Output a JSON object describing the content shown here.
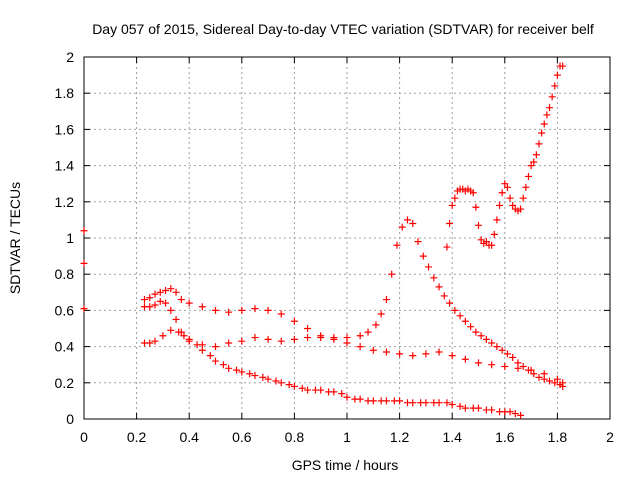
{
  "chart_data": {
    "type": "scatter",
    "title": "Day 057 of 2015, Sidereal Day-to-day VTEC variation (SDTVAR) for receiver belf",
    "xlabel": "GPS time / hours",
    "ylabel": "SDTVAR / TECUs",
    "xlim": [
      0,
      2
    ],
    "ylim": [
      0,
      2
    ],
    "xticks": [
      "0",
      "0.2",
      "0.4",
      "0.6",
      "0.8",
      "1",
      "1.2",
      "1.4",
      "1.6",
      "1.8",
      "2"
    ],
    "yticks": [
      "0",
      "0.2",
      "0.4",
      "0.6",
      "0.8",
      "1",
      "1.2",
      "1.4",
      "1.6",
      "1.8",
      "2"
    ],
    "grid": true,
    "marker": "+",
    "marker_color": "#ff0000",
    "series": [
      {
        "x": [
          0.0,
          0.0,
          0.0
        ],
        "y": [
          1.04,
          0.86,
          0.61
        ]
      },
      {
        "x": [
          0.23,
          0.25,
          0.27,
          0.29,
          0.31,
          0.33,
          0.35,
          0.37,
          0.4,
          0.45,
          0.5,
          0.55,
          0.6,
          0.65,
          0.7,
          0.75,
          0.8,
          0.85,
          0.9,
          0.95,
          1.0,
          1.05,
          1.08,
          1.11,
          1.13,
          1.15,
          1.17,
          1.19,
          1.21,
          1.23,
          1.25,
          1.27,
          1.29,
          1.31,
          1.33,
          1.35,
          1.37,
          1.39,
          1.41,
          1.43,
          1.45,
          1.47,
          1.49,
          1.51,
          1.53,
          1.55,
          1.57,
          1.59,
          1.61,
          1.63,
          1.65,
          1.67,
          1.69,
          1.71,
          1.73,
          1.75,
          1.77,
          1.79,
          1.81,
          1.82
        ],
        "y": [
          0.66,
          0.67,
          0.69,
          0.7,
          0.71,
          0.72,
          0.7,
          0.66,
          0.64,
          0.62,
          0.6,
          0.59,
          0.6,
          0.61,
          0.6,
          0.58,
          0.54,
          0.5,
          0.46,
          0.45,
          0.45,
          0.46,
          0.48,
          0.52,
          0.58,
          0.66,
          0.8,
          0.96,
          1.06,
          1.1,
          1.08,
          0.98,
          0.9,
          0.84,
          0.78,
          0.73,
          0.68,
          0.64,
          0.6,
          0.57,
          0.54,
          0.51,
          0.48,
          0.46,
          0.44,
          0.42,
          0.4,
          0.38,
          0.36,
          0.34,
          0.31,
          0.29,
          0.27,
          0.25,
          0.23,
          0.22,
          0.21,
          0.2,
          0.19,
          0.18
        ]
      },
      {
        "x": [
          0.23,
          0.25,
          0.27,
          0.29,
          0.31,
          0.33,
          0.35,
          0.37,
          0.4,
          0.45,
          0.5,
          0.55,
          0.6,
          0.65,
          0.7,
          0.75,
          0.8,
          0.85,
          0.9,
          0.95,
          1.0,
          1.05,
          1.1,
          1.15,
          1.2,
          1.25,
          1.3,
          1.35,
          1.4,
          1.45,
          1.5,
          1.55,
          1.6,
          1.65,
          1.7,
          1.75,
          1.8,
          1.82
        ],
        "y": [
          0.62,
          0.62,
          0.63,
          0.65,
          0.64,
          0.6,
          0.55,
          0.48,
          0.44,
          0.41,
          0.4,
          0.42,
          0.43,
          0.45,
          0.44,
          0.43,
          0.44,
          0.45,
          0.45,
          0.44,
          0.42,
          0.4,
          0.38,
          0.37,
          0.36,
          0.35,
          0.36,
          0.37,
          0.35,
          0.33,
          0.31,
          0.3,
          0.29,
          0.28,
          0.27,
          0.25,
          0.22,
          0.2
        ]
      },
      {
        "x": [
          0.23,
          0.25,
          0.27,
          0.3,
          0.33,
          0.36,
          0.38,
          0.4,
          0.43,
          0.45,
          0.48,
          0.5,
          0.53,
          0.55,
          0.58,
          0.6,
          0.63,
          0.65,
          0.68,
          0.7,
          0.73,
          0.75,
          0.78,
          0.8,
          0.83,
          0.85,
          0.88,
          0.9,
          0.93,
          0.95,
          0.98,
          1.0,
          1.03,
          1.05,
          1.08,
          1.1,
          1.13,
          1.15,
          1.18,
          1.2,
          1.23,
          1.25,
          1.28,
          1.3,
          1.33,
          1.35,
          1.38,
          1.4,
          1.43,
          1.45,
          1.48,
          1.5,
          1.53,
          1.55,
          1.58,
          1.6,
          1.62,
          1.64,
          1.66
        ],
        "y": [
          0.42,
          0.42,
          0.43,
          0.46,
          0.49,
          0.48,
          0.46,
          0.43,
          0.41,
          0.38,
          0.35,
          0.32,
          0.3,
          0.28,
          0.27,
          0.26,
          0.25,
          0.24,
          0.23,
          0.22,
          0.21,
          0.2,
          0.19,
          0.18,
          0.17,
          0.16,
          0.16,
          0.16,
          0.15,
          0.15,
          0.14,
          0.12,
          0.11,
          0.11,
          0.1,
          0.1,
          0.1,
          0.1,
          0.1,
          0.1,
          0.09,
          0.09,
          0.09,
          0.09,
          0.09,
          0.09,
          0.09,
          0.08,
          0.07,
          0.06,
          0.06,
          0.06,
          0.05,
          0.05,
          0.04,
          0.04,
          0.04,
          0.03,
          0.02
        ]
      },
      {
        "x": [
          1.38,
          1.39,
          1.4,
          1.41,
          1.42,
          1.43,
          1.44,
          1.45,
          1.46,
          1.47,
          1.48,
          1.49,
          1.5,
          1.51,
          1.52,
          1.53,
          1.54,
          1.55,
          1.56,
          1.57,
          1.58,
          1.59,
          1.6,
          1.61,
          1.62,
          1.63,
          1.64,
          1.65,
          1.66,
          1.67,
          1.68,
          1.69,
          1.7,
          1.71,
          1.72,
          1.73,
          1.74,
          1.75,
          1.76,
          1.77,
          1.78,
          1.79,
          1.8,
          1.81,
          1.82
        ],
        "y": [
          0.95,
          1.08,
          1.18,
          1.22,
          1.26,
          1.27,
          1.27,
          1.26,
          1.27,
          1.26,
          1.25,
          1.17,
          1.07,
          0.99,
          0.97,
          0.98,
          0.96,
          0.96,
          1.02,
          1.1,
          1.18,
          1.25,
          1.3,
          1.28,
          1.22,
          1.18,
          1.16,
          1.15,
          1.16,
          1.22,
          1.28,
          1.34,
          1.4,
          1.42,
          1.46,
          1.52,
          1.58,
          1.63,
          1.68,
          1.72,
          1.78,
          1.84,
          1.9,
          1.95,
          1.95
        ]
      }
    ]
  }
}
